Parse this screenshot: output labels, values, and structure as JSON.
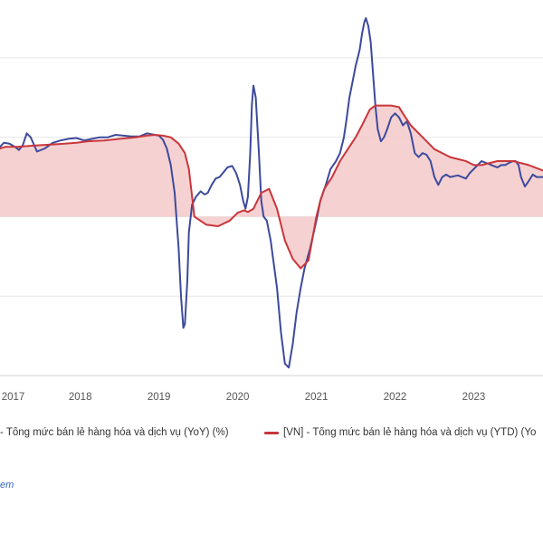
{
  "legend": {
    "series1_label": "- Tổng mức bán lẻ hàng hóa và dịch vụ (YoY) (%)",
    "series2_label": "[VN] - Tổng mức bán lẻ hàng hóa và dịch vụ (YTD) (Yo"
  },
  "source": {
    "link_text": "em"
  },
  "colors": {
    "yoy_line": "#3d4a9c",
    "ytd_line": "#c9363a",
    "ytd_fill": "#f4cccd",
    "grid": "#e6e6e6"
  },
  "chart_data": {
    "type": "line",
    "title": "",
    "xlabel": "",
    "ylabel": "",
    "x_ticks": [
      "2017",
      "2018",
      "2019",
      "2020",
      "2021",
      "2022",
      "2023"
    ],
    "xlim": [
      2016.98,
      2023.88
    ],
    "ylim": [
      -20,
      25
    ],
    "grid": "horizontal",
    "legend_position": "bottom",
    "series": [
      {
        "name": "- Tổng mức bán lẻ hàng hóa và dịch vụ (YoY) (%)",
        "type": "line",
        "color": "#3d4a9c",
        "x": [
          2016.98,
          2017.03,
          2017.1,
          2017.17,
          2017.22,
          2017.27,
          2017.32,
          2017.37,
          2017.45,
          2017.55,
          2017.65,
          2017.75,
          2017.85,
          2017.95,
          2018.05,
          2018.15,
          2018.25,
          2018.35,
          2018.45,
          2018.55,
          2018.65,
          2018.75,
          2018.8,
          2018.85,
          2018.9,
          2019.0,
          2019.05,
          2019.1,
          2019.15,
          2019.2,
          2019.25,
          2019.28,
          2019.31,
          2019.33,
          2019.36,
          2019.38,
          2019.42,
          2019.47,
          2019.53,
          2019.58,
          2019.62,
          2019.67,
          2019.72,
          2019.77,
          2019.82,
          2019.87,
          2019.93,
          2019.98,
          2020.03,
          2020.07,
          2020.1,
          2020.13,
          2020.16,
          2020.18,
          2020.2,
          2020.23,
          2020.27,
          2020.3,
          2020.33,
          2020.37,
          2020.42,
          2020.5,
          2020.55,
          2020.6,
          2020.65,
          2020.7,
          2020.75,
          2020.8,
          2020.85,
          2020.92,
          2021.0,
          2021.05,
          2021.12,
          2021.18,
          2021.25,
          2021.3,
          2021.35,
          2021.38,
          2021.42,
          2021.46,
          2021.5,
          2021.55,
          2021.58,
          2021.61,
          2021.63,
          2021.66,
          2021.69,
          2021.72,
          2021.75,
          2021.78,
          2021.82,
          2021.86,
          2021.9,
          2021.95,
          2022.0,
          2022.05,
          2022.1,
          2022.15,
          2022.2,
          2022.25,
          2022.3,
          2022.35,
          2022.4,
          2022.45,
          2022.5,
          2022.55,
          2022.6,
          2022.65,
          2022.7,
          2022.75,
          2022.8,
          2022.85,
          2022.9,
          2022.95,
          2023.0,
          2023.05,
          2023.1,
          2023.15,
          2023.2,
          2023.25,
          2023.3,
          2023.35,
          2023.4,
          2023.45,
          2023.5,
          2023.53,
          2023.57,
          2023.6,
          2023.65,
          2023.7,
          2023.75,
          2023.8,
          2023.88
        ],
        "y": [
          8.8,
          9.3,
          9.2,
          8.8,
          8.4,
          9.0,
          10.5,
          10.0,
          8.2,
          8.6,
          9.3,
          9.6,
          9.8,
          9.9,
          9.6,
          9.8,
          10.0,
          10.0,
          10.3,
          10.2,
          10.1,
          10.1,
          10.3,
          10.5,
          10.4,
          10.2,
          9.7,
          8.6,
          6.5,
          3.0,
          -4.0,
          -10.0,
          -14.0,
          -13.5,
          -8.0,
          -2.0,
          1.5,
          2.5,
          3.2,
          2.8,
          3.0,
          4.0,
          4.8,
          5.0,
          5.6,
          6.2,
          6.4,
          5.5,
          4.0,
          2.0,
          1.0,
          2.5,
          8.0,
          14.0,
          16.5,
          15.0,
          8.0,
          2.0,
          0.0,
          -0.5,
          -3.0,
          -9.0,
          -14.5,
          -18.5,
          -19.0,
          -16.0,
          -12.0,
          -9.0,
          -6.5,
          -4.0,
          -0.5,
          2.0,
          4.0,
          6.0,
          7.0,
          8.0,
          10.0,
          12.0,
          15.0,
          17.0,
          19.0,
          21.0,
          23.0,
          24.5,
          25.0,
          24.0,
          22.0,
          18.0,
          14.0,
          11.0,
          9.5,
          10.0,
          11.0,
          12.5,
          13.0,
          12.5,
          11.5,
          12.0,
          10.5,
          8.0,
          7.5,
          8.0,
          7.8,
          7.0,
          5.0,
          4.0,
          5.0,
          5.3,
          5.0,
          5.1,
          5.2,
          5.0,
          4.8,
          5.5,
          6.0,
          6.5,
          7.0,
          6.8,
          6.6,
          6.4,
          6.2,
          6.5,
          6.5,
          6.8,
          7.0,
          7.0,
          6.5,
          5.0,
          3.8,
          4.5,
          5.3,
          5.0,
          5.0
        ]
      },
      {
        "name": "[VN] - Tổng mức bán lẻ hàng hóa và dịch vụ (YTD) (Yo",
        "type": "area",
        "color": "#c9363a",
        "x": [
          2016.98,
          2017.05,
          2017.2,
          2017.35,
          2017.5,
          2017.65,
          2017.8,
          2017.95,
          2018.1,
          2018.3,
          2018.5,
          2018.7,
          2018.85,
          2018.95,
          2019.05,
          2019.15,
          2019.25,
          2019.33,
          2019.38,
          2019.45,
          2019.6,
          2019.75,
          2019.9,
          2020.0,
          2020.08,
          2020.13,
          2020.2,
          2020.3,
          2020.4,
          2020.5,
          2020.6,
          2020.7,
          2020.8,
          2020.9,
          2021.0,
          2021.05,
          2021.1,
          2021.2,
          2021.3,
          2021.4,
          2021.5,
          2021.58,
          2021.63,
          2021.68,
          2021.75,
          2021.82,
          2021.88,
          2021.95,
          2022.05,
          2022.1,
          2022.2,
          2022.35,
          2022.5,
          2022.7,
          2022.9,
          2023.0,
          2023.1,
          2023.3,
          2023.5,
          2023.7,
          2023.88
        ],
        "y": [
          8.6,
          8.8,
          8.8,
          8.9,
          9.0,
          9.1,
          9.2,
          9.3,
          9.5,
          9.6,
          9.8,
          10.0,
          10.2,
          10.3,
          10.2,
          10.0,
          9.2,
          8.0,
          6.0,
          0.0,
          -1.0,
          -1.2,
          -0.5,
          0.5,
          0.8,
          0.6,
          1.0,
          3.0,
          3.5,
          1.0,
          -3.0,
          -5.3,
          -6.5,
          -5.5,
          0.0,
          2.0,
          3.5,
          5.0,
          7.0,
          8.5,
          10.0,
          11.5,
          12.5,
          13.5,
          14.0,
          14.0,
          14.0,
          14.0,
          13.8,
          13.0,
          11.5,
          10.0,
          8.5,
          7.5,
          7.0,
          6.5,
          6.5,
          7.0,
          7.0,
          6.5,
          5.8
        ]
      }
    ]
  }
}
